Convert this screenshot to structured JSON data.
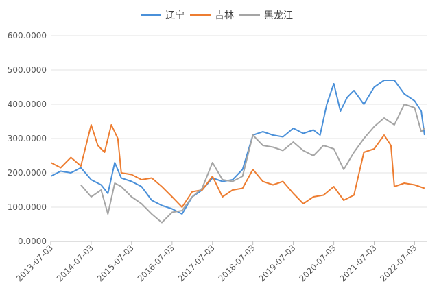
{
  "chart_data": {
    "type": "line",
    "title": "",
    "xlabel": "",
    "ylabel": "",
    "ylim": [
      0,
      600
    ],
    "yticks": [
      "0.0000",
      "100.0000",
      "200.0000",
      "300.0000",
      "400.0000",
      "500.0000",
      "600.0000"
    ],
    "x": [
      "2013-07-03",
      "2014-07-03",
      "2015-07-03",
      "2016-07-03",
      "2017-07-03",
      "2018-07-03",
      "2019-07-03",
      "2020-07-03",
      "2021-07-03",
      "2022-07-03"
    ],
    "grid": "horizontal",
    "legend_position": "top",
    "series": [
      {
        "name": "辽宁",
        "color": "#4a90d9",
        "points": [
          [
            "2013-07-03",
            190
          ],
          [
            "2013-10-01",
            205
          ],
          [
            "2014-01-01",
            200
          ],
          [
            "2014-04-01",
            215
          ],
          [
            "2014-07-03",
            180
          ],
          [
            "2014-10-01",
            165
          ],
          [
            "2014-12-01",
            140
          ],
          [
            "2015-02-01",
            230
          ],
          [
            "2015-04-01",
            185
          ],
          [
            "2015-07-03",
            175
          ],
          [
            "2015-10-01",
            160
          ],
          [
            "2016-01-01",
            120
          ],
          [
            "2016-04-01",
            105
          ],
          [
            "2016-07-03",
            95
          ],
          [
            "2016-10-01",
            80
          ],
          [
            "2017-01-01",
            130
          ],
          [
            "2017-04-01",
            150
          ],
          [
            "2017-07-03",
            185
          ],
          [
            "2017-10-01",
            175
          ],
          [
            "2018-01-01",
            180
          ],
          [
            "2018-04-01",
            210
          ],
          [
            "2018-07-03",
            310
          ],
          [
            "2018-10-01",
            320
          ],
          [
            "2019-01-01",
            310
          ],
          [
            "2019-04-01",
            305
          ],
          [
            "2019-07-03",
            330
          ],
          [
            "2019-10-01",
            315
          ],
          [
            "2020-01-01",
            325
          ],
          [
            "2020-03-01",
            310
          ],
          [
            "2020-05-01",
            400
          ],
          [
            "2020-07-03",
            460
          ],
          [
            "2020-09-01",
            380
          ],
          [
            "2020-11-01",
            420
          ],
          [
            "2021-01-01",
            440
          ],
          [
            "2021-04-01",
            400
          ],
          [
            "2021-07-03",
            450
          ],
          [
            "2021-10-01",
            470
          ],
          [
            "2022-01-01",
            470
          ],
          [
            "2022-04-01",
            430
          ],
          [
            "2022-07-03",
            410
          ],
          [
            "2022-09-01",
            380
          ],
          [
            "2022-10-01",
            310
          ]
        ]
      },
      {
        "name": "吉林",
        "color": "#ed7d31",
        "points": [
          [
            "2013-07-03",
            230
          ],
          [
            "2013-10-01",
            215
          ],
          [
            "2014-01-01",
            245
          ],
          [
            "2014-04-01",
            220
          ],
          [
            "2014-07-03",
            340
          ],
          [
            "2014-09-01",
            280
          ],
          [
            "2014-11-01",
            260
          ],
          [
            "2015-01-01",
            340
          ],
          [
            "2015-03-01",
            300
          ],
          [
            "2015-04-01",
            200
          ],
          [
            "2015-07-03",
            195
          ],
          [
            "2015-10-01",
            180
          ],
          [
            "2016-01-01",
            185
          ],
          [
            "2016-04-01",
            160
          ],
          [
            "2016-07-03",
            130
          ],
          [
            "2016-10-01",
            100
          ],
          [
            "2017-01-01",
            145
          ],
          [
            "2017-04-01",
            150
          ],
          [
            "2017-07-03",
            190
          ],
          [
            "2017-10-01",
            130
          ],
          [
            "2018-01-01",
            150
          ],
          [
            "2018-04-01",
            155
          ],
          [
            "2018-07-03",
            210
          ],
          [
            "2018-10-01",
            175
          ],
          [
            "2019-01-01",
            165
          ],
          [
            "2019-04-01",
            175
          ],
          [
            "2019-07-03",
            140
          ],
          [
            "2019-10-01",
            110
          ],
          [
            "2020-01-01",
            130
          ],
          [
            "2020-04-01",
            135
          ],
          [
            "2020-07-03",
            160
          ],
          [
            "2020-10-01",
            120
          ],
          [
            "2021-01-01",
            135
          ],
          [
            "2021-04-01",
            260
          ],
          [
            "2021-07-03",
            270
          ],
          [
            "2021-10-01",
            310
          ],
          [
            "2021-12-01",
            280
          ],
          [
            "2022-01-01",
            160
          ],
          [
            "2022-04-01",
            170
          ],
          [
            "2022-07-03",
            165
          ],
          [
            "2022-10-01",
            155
          ]
        ]
      },
      {
        "name": "黑龙江",
        "color": "#a5a5a5",
        "points": [
          [
            "2014-04-01",
            165
          ],
          [
            "2014-07-03",
            130
          ],
          [
            "2014-10-01",
            150
          ],
          [
            "2014-12-01",
            80
          ],
          [
            "2015-02-01",
            170
          ],
          [
            "2015-04-01",
            160
          ],
          [
            "2015-07-03",
            130
          ],
          [
            "2015-10-01",
            110
          ],
          [
            "2016-01-01",
            80
          ],
          [
            "2016-04-01",
            55
          ],
          [
            "2016-07-03",
            85
          ],
          [
            "2016-10-01",
            90
          ],
          [
            "2017-01-01",
            130
          ],
          [
            "2017-04-01",
            155
          ],
          [
            "2017-07-03",
            230
          ],
          [
            "2017-10-01",
            180
          ],
          [
            "2018-01-01",
            175
          ],
          [
            "2018-04-01",
            190
          ],
          [
            "2018-07-03",
            310
          ],
          [
            "2018-10-01",
            280
          ],
          [
            "2019-01-01",
            275
          ],
          [
            "2019-04-01",
            265
          ],
          [
            "2019-07-03",
            290
          ],
          [
            "2019-10-01",
            265
          ],
          [
            "2020-01-01",
            250
          ],
          [
            "2020-04-01",
            280
          ],
          [
            "2020-07-03",
            270
          ],
          [
            "2020-10-01",
            210
          ],
          [
            "2021-01-01",
            260
          ],
          [
            "2021-04-01",
            300
          ],
          [
            "2021-07-03",
            335
          ],
          [
            "2021-10-01",
            360
          ],
          [
            "2022-01-01",
            340
          ],
          [
            "2022-04-01",
            400
          ],
          [
            "2022-07-03",
            390
          ],
          [
            "2022-09-01",
            320
          ],
          [
            "2022-10-01",
            330
          ]
        ]
      }
    ]
  }
}
